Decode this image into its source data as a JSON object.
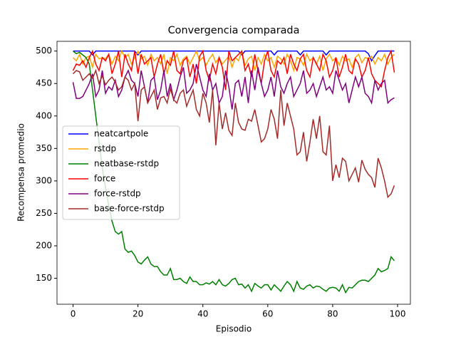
{
  "chart_data": {
    "type": "line",
    "title": "Convergencia comparada",
    "x_label": "Episodio",
    "y_label": "Recompensa promedio",
    "x": [
      0,
      1,
      2,
      3,
      4,
      5,
      6,
      7,
      8,
      9,
      10,
      11,
      12,
      13,
      14,
      15,
      16,
      17,
      18,
      19,
      20,
      21,
      22,
      23,
      24,
      25,
      26,
      27,
      28,
      29,
      30,
      31,
      32,
      33,
      34,
      35,
      36,
      37,
      38,
      39,
      40,
      41,
      42,
      43,
      44,
      45,
      46,
      47,
      48,
      49,
      50,
      51,
      52,
      53,
      54,
      55,
      56,
      57,
      58,
      59,
      60,
      61,
      62,
      63,
      64,
      65,
      66,
      67,
      68,
      69,
      70,
      71,
      72,
      73,
      74,
      75,
      76,
      77,
      78,
      79,
      80,
      81,
      82,
      83,
      84,
      85,
      86,
      87,
      88,
      89,
      90,
      91,
      92,
      93,
      94,
      95,
      96,
      97,
      98,
      99
    ],
    "xlim": [
      -4.95,
      103.95
    ],
    "ylim": [
      110,
      515
    ],
    "xticks": [
      0,
      20,
      40,
      60,
      80,
      100
    ],
    "yticks": [
      150,
      200,
      250,
      300,
      350,
      400,
      450,
      500
    ],
    "legend": "center left",
    "series": [
      {
        "name": "neatcartpole",
        "color": "#0000ff",
        "values": [
          500,
          500,
          500,
          500,
          500,
          500,
          494,
          500,
          500,
          500,
          500,
          500,
          500,
          500,
          500,
          500,
          500,
          500,
          500,
          500,
          494,
          500,
          500,
          500,
          500,
          500,
          500,
          500,
          500,
          500,
          500,
          500,
          500,
          500,
          500,
          500,
          500,
          500,
          500,
          500,
          500,
          500,
          500,
          500,
          500,
          500,
          500,
          500,
          500,
          500,
          500,
          500,
          494,
          500,
          500,
          500,
          500,
          500,
          500,
          500,
          500,
          500,
          494,
          500,
          500,
          500,
          500,
          500,
          500,
          500,
          494,
          500,
          500,
          500,
          500,
          500,
          500,
          500,
          494,
          500,
          500,
          500,
          500,
          500,
          500,
          500,
          500,
          500,
          500,
          500,
          500,
          496,
          485,
          493,
          500,
          500,
          500,
          500,
          500,
          500
        ]
      },
      {
        "name": "rstdp",
        "color": "#ffa500",
        "values": [
          490,
          485,
          495,
          480,
          490,
          492,
          475,
          495,
          488,
          490,
          488,
          495,
          480,
          492,
          485,
          500,
          490,
          495,
          480,
          490,
          500,
          488,
          492,
          478,
          495,
          485,
          490,
          480,
          495,
          465,
          490,
          485,
          495,
          478,
          488,
          492,
          480,
          490,
          500,
          485,
          490,
          478,
          488,
          495,
          482,
          490,
          480,
          486,
          492,
          475,
          490,
          485,
          500,
          478,
          488,
          492,
          470,
          490,
          480,
          495,
          485,
          490,
          475,
          492,
          488,
          480,
          495,
          485,
          470,
          490,
          488,
          478,
          495,
          485,
          490,
          480,
          492,
          470,
          488,
          495,
          485,
          490,
          478,
          492,
          485,
          488,
          475,
          490,
          495,
          482,
          490,
          488,
          492,
          480,
          490,
          485,
          495,
          480,
          490,
          495
        ]
      },
      {
        "name": "neatbase-rstdp",
        "color": "#008000",
        "values": [
          500,
          496,
          498,
          494,
          490,
          480,
          440,
          400,
          360,
          320,
          290,
          262,
          238,
          222,
          218,
          222,
          195,
          190,
          192,
          185,
          175,
          172,
          178,
          183,
          172,
          168,
          168,
          160,
          155,
          155,
          165,
          148,
          148,
          150,
          145,
          142,
          152,
          145,
          145,
          140,
          140,
          143,
          141,
          145,
          140,
          148,
          140,
          138,
          142,
          148,
          150,
          140,
          141,
          135,
          140,
          130,
          142,
          138,
          135,
          140,
          140,
          132,
          140,
          135,
          130,
          138,
          145,
          140,
          130,
          145,
          135,
          133,
          138,
          140,
          135,
          138,
          137,
          133,
          130,
          135,
          136,
          135,
          130,
          140,
          128,
          136,
          135,
          140,
          145,
          147,
          147,
          145,
          150,
          155,
          165,
          160,
          162,
          165,
          183,
          177
        ]
      },
      {
        "name": "force",
        "color": "#ff0000",
        "values": [
          470,
          480,
          478,
          485,
          475,
          490,
          500,
          480,
          470,
          490,
          485,
          495,
          465,
          480,
          500,
          460,
          495,
          480,
          470,
          500,
          465,
          495,
          480,
          485,
          490,
          460,
          480,
          495,
          465,
          485,
          478,
          500,
          470,
          465,
          485,
          490,
          460,
          480,
          450,
          492,
          500,
          470,
          455,
          480,
          465,
          490,
          475,
          440,
          500,
          485,
          490,
          495,
          500,
          470,
          480,
          460,
          495,
          470,
          450,
          485,
          500,
          470,
          460,
          485,
          480,
          490,
          465,
          495,
          480,
          470,
          488,
          495,
          470,
          460,
          490,
          480,
          470,
          495,
          485,
          460,
          470,
          490,
          460,
          475,
          495,
          470,
          465,
          488,
          480,
          460,
          470,
          490,
          465,
          455,
          450,
          445,
          470,
          490,
          500,
          467
        ]
      },
      {
        "name": "force-rstdp",
        "color": "#800080",
        "values": [
          452,
          427,
          427,
          430,
          440,
          450,
          465,
          430,
          440,
          470,
          435,
          445,
          440,
          455,
          430,
          440,
          460,
          470,
          455,
          450,
          430,
          470,
          445,
          420,
          455,
          460,
          425,
          440,
          470,
          430,
          450,
          425,
          440,
          460,
          475,
          435,
          440,
          450,
          480,
          460,
          440,
          430,
          465,
          440,
          450,
          420,
          430,
          470,
          445,
          410,
          450,
          455,
          430,
          460,
          420,
          470,
          440,
          475,
          450,
          430,
          440,
          460,
          430,
          470,
          445,
          435,
          450,
          460,
          430,
          440,
          450,
          470,
          435,
          440,
          450,
          430,
          445,
          460,
          440,
          445,
          435,
          470,
          455,
          440,
          450,
          420,
          440,
          460,
          445,
          460,
          435,
          430,
          420,
          455,
          440,
          450,
          455,
          420,
          425,
          428
        ]
      },
      {
        "name": "base-force-rstdp",
        "color": "#a52a2a",
        "values": [
          465,
          470,
          468,
          455,
          460,
          465,
          458,
          470,
          450,
          462,
          448,
          455,
          460,
          452,
          440,
          445,
          460,
          455,
          440,
          450,
          392,
          440,
          445,
          420,
          430,
          440,
          410,
          428,
          430,
          420,
          442,
          425,
          420,
          435,
          440,
          415,
          428,
          440,
          410,
          400,
          435,
          420,
          390,
          440,
          355,
          420,
          380,
          405,
          378,
          370,
          420,
          390,
          380,
          378,
          395,
          392,
          410,
          385,
          360,
          365,
          380,
          410,
          395,
          365,
          440,
          385,
          420,
          400,
          380,
          340,
          345,
          375,
          330,
          360,
          395,
          365,
          400,
          345,
          340,
          385,
          300,
          325,
          305,
          335,
          330,
          300,
          310,
          320,
          298,
          332,
          318,
          310,
          305,
          290,
          335,
          320,
          300,
          275,
          280,
          293
        ]
      }
    ]
  }
}
